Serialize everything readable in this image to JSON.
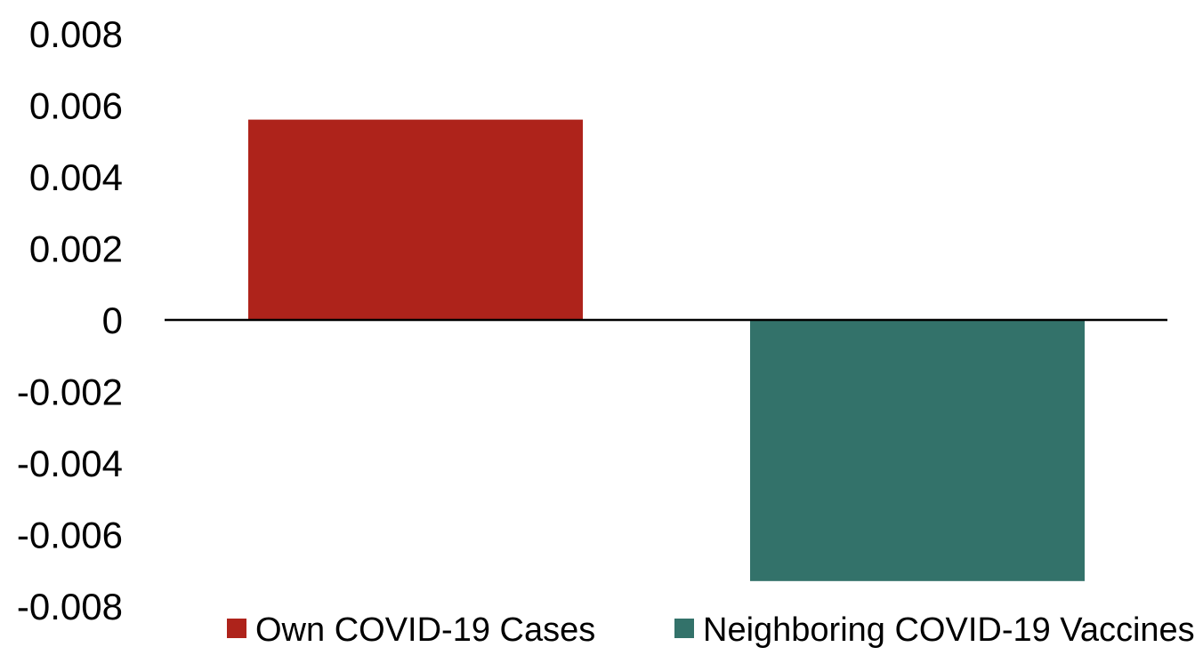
{
  "chart_data": {
    "type": "bar",
    "title": "",
    "xlabel": "",
    "ylabel": "",
    "ylim": [
      -0.008,
      0.008
    ],
    "y_ticks": [
      "0.008",
      "0.006",
      "0.004",
      "0.002",
      "0",
      "-0.002",
      "-0.004",
      "-0.006",
      "-0.008"
    ],
    "y_tick_values": [
      0.008,
      0.006,
      0.004,
      0.002,
      0,
      -0.002,
      -0.004,
      -0.006,
      -0.008
    ],
    "grid": false,
    "legend_position": "bottom",
    "series": [
      {
        "name": "Own COVID-19 Cases",
        "value": 0.0056,
        "color": "#AE231B"
      },
      {
        "name": "Neighboring COVID-19 Vaccines",
        "value": -0.0073,
        "color": "#33726A"
      }
    ]
  },
  "colors": {
    "axis": "#000000",
    "background": "#ffffff"
  }
}
